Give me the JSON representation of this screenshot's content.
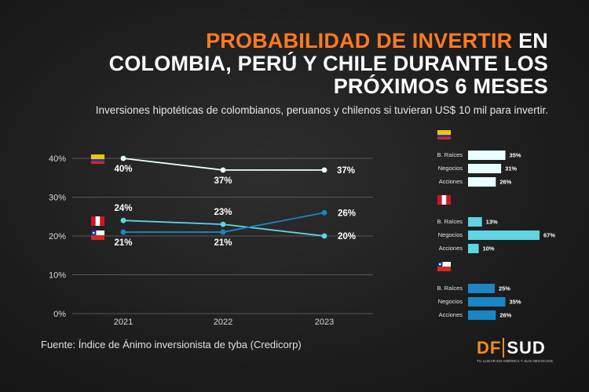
{
  "title": {
    "accent": "PROBABILIDAD DE INVERTIR",
    "rest_line1": " EN",
    "line2": "COLOMBIA, PERÚ Y CHILE DURANTE LOS",
    "line3": "PRÓXIMOS 6 MESES"
  },
  "subtitle": "Inversiones hipotéticas de colombianos, peruanos y chilenos si tuvieran US$ 10 mil para invertir.",
  "source": "Fuente: Índice de Ánimo inversionista de tyba (Credicorp)",
  "logo": {
    "df": "DF",
    "sud": "SUD",
    "tagline": "TU LUGAR EN AMÉRICA Y SUS NEGOCIOS"
  },
  "colors": {
    "colombia": "#eaffff",
    "peru": "#5fd5e2",
    "chile": "#1b86c6",
    "grid": "#575757",
    "accent": "#ff7a21"
  },
  "chart_data": [
    {
      "type": "line",
      "title": "",
      "x": [
        "2021",
        "2022",
        "2023"
      ],
      "ylim": [
        0,
        40
      ],
      "yticks": [
        "0%",
        "10%",
        "20%",
        "30%",
        "40%"
      ],
      "ytick_values": [
        0,
        10,
        20,
        30,
        40
      ],
      "series": [
        {
          "name": "Colombia",
          "flag": "colombia-flag-icon",
          "color_key": "colombia",
          "values": [
            40,
            37,
            37
          ],
          "labels": [
            "40%",
            "37%",
            "37%"
          ]
        },
        {
          "name": "Perú",
          "flag": "peru-flag-icon",
          "color_key": "peru",
          "values": [
            24,
            23,
            20
          ],
          "labels": [
            "24%",
            "23%",
            "20%"
          ]
        },
        {
          "name": "Chile",
          "flag": "chile-flag-icon",
          "color_key": "chile",
          "values": [
            21,
            21,
            26
          ],
          "labels": [
            "21%",
            "21%",
            "26%"
          ]
        }
      ]
    },
    {
      "type": "bar",
      "orientation": "horizontal",
      "country": "Colombia",
      "flag": "colombia-flag-icon",
      "color_key": "colombia",
      "categories": [
        "B. Raíces",
        "Negocios",
        "Acciones"
      ],
      "values": [
        35,
        31,
        26
      ],
      "labels": [
        "35%",
        "31%",
        "26%"
      ]
    },
    {
      "type": "bar",
      "orientation": "horizontal",
      "country": "Perú",
      "flag": "peru-flag-icon",
      "color_key": "peru",
      "categories": [
        "B. Raíces",
        "Negocios",
        "Acciones"
      ],
      "values": [
        13,
        67,
        10
      ],
      "labels": [
        "13%",
        "67%",
        "10%"
      ]
    },
    {
      "type": "bar",
      "orientation": "horizontal",
      "country": "Chile",
      "flag": "chile-flag-icon",
      "color_key": "chile",
      "categories": [
        "B. Raíces",
        "Negocios",
        "Acciones"
      ],
      "values": [
        25,
        35,
        26
      ],
      "labels": [
        "25%",
        "35%",
        "26%"
      ]
    }
  ]
}
